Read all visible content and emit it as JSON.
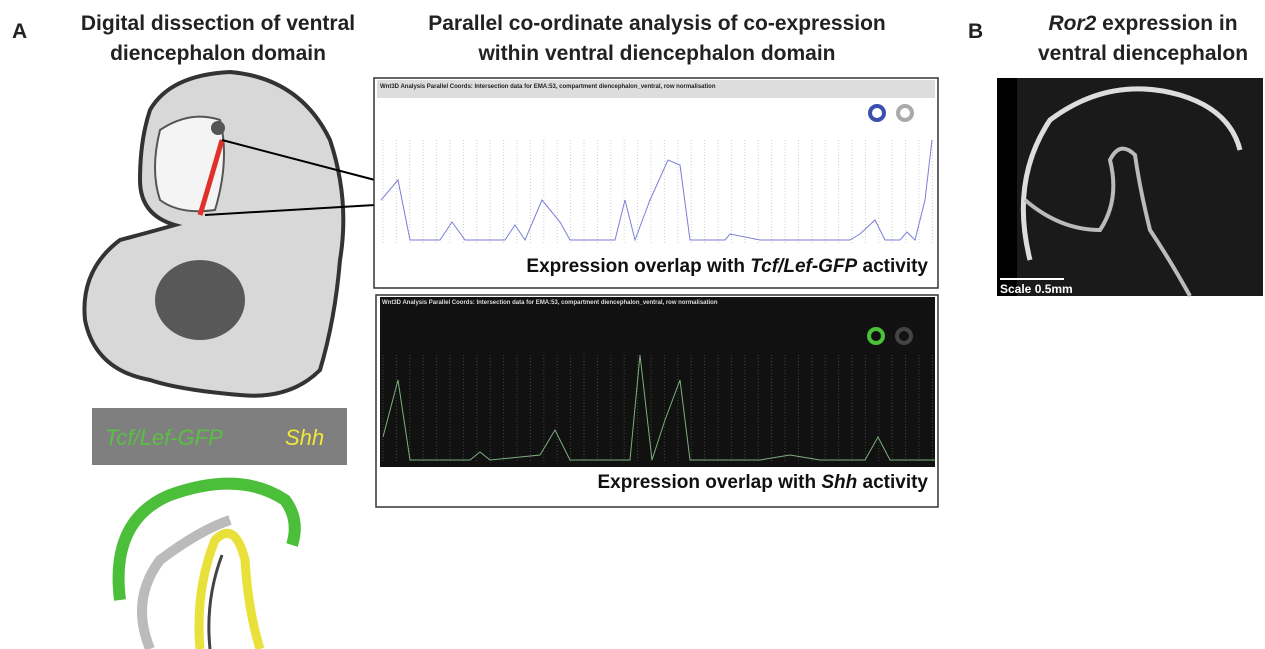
{
  "panel_a": {
    "label": "A",
    "dissection_title": [
      "Digital dissection of ventral",
      "diencephalon domain"
    ],
    "analysis_title": [
      "Parallel co-ordinate analysis of co-expression",
      "within ventral diencephalon domain"
    ],
    "legend": {
      "gfp": "Tcf/Lef-GFP",
      "shh": "Shh"
    },
    "screenshot_header": "Wnt3D Analysis Parallel Coords: Intersection data for EMA:53, compartment diencephalon_ventral, row normalisation",
    "caption_gfp": [
      "Expression overlap with ",
      "Tcf/Lef-GFP",
      " activity"
    ],
    "caption_shh": [
      "Expression overlap with ",
      "Shh",
      " activity"
    ]
  },
  "panel_b": {
    "label": "B",
    "title": [
      "Ror2",
      " expression in",
      "ventral diencephalon"
    ],
    "scale": "Scale 0.5mm"
  }
}
